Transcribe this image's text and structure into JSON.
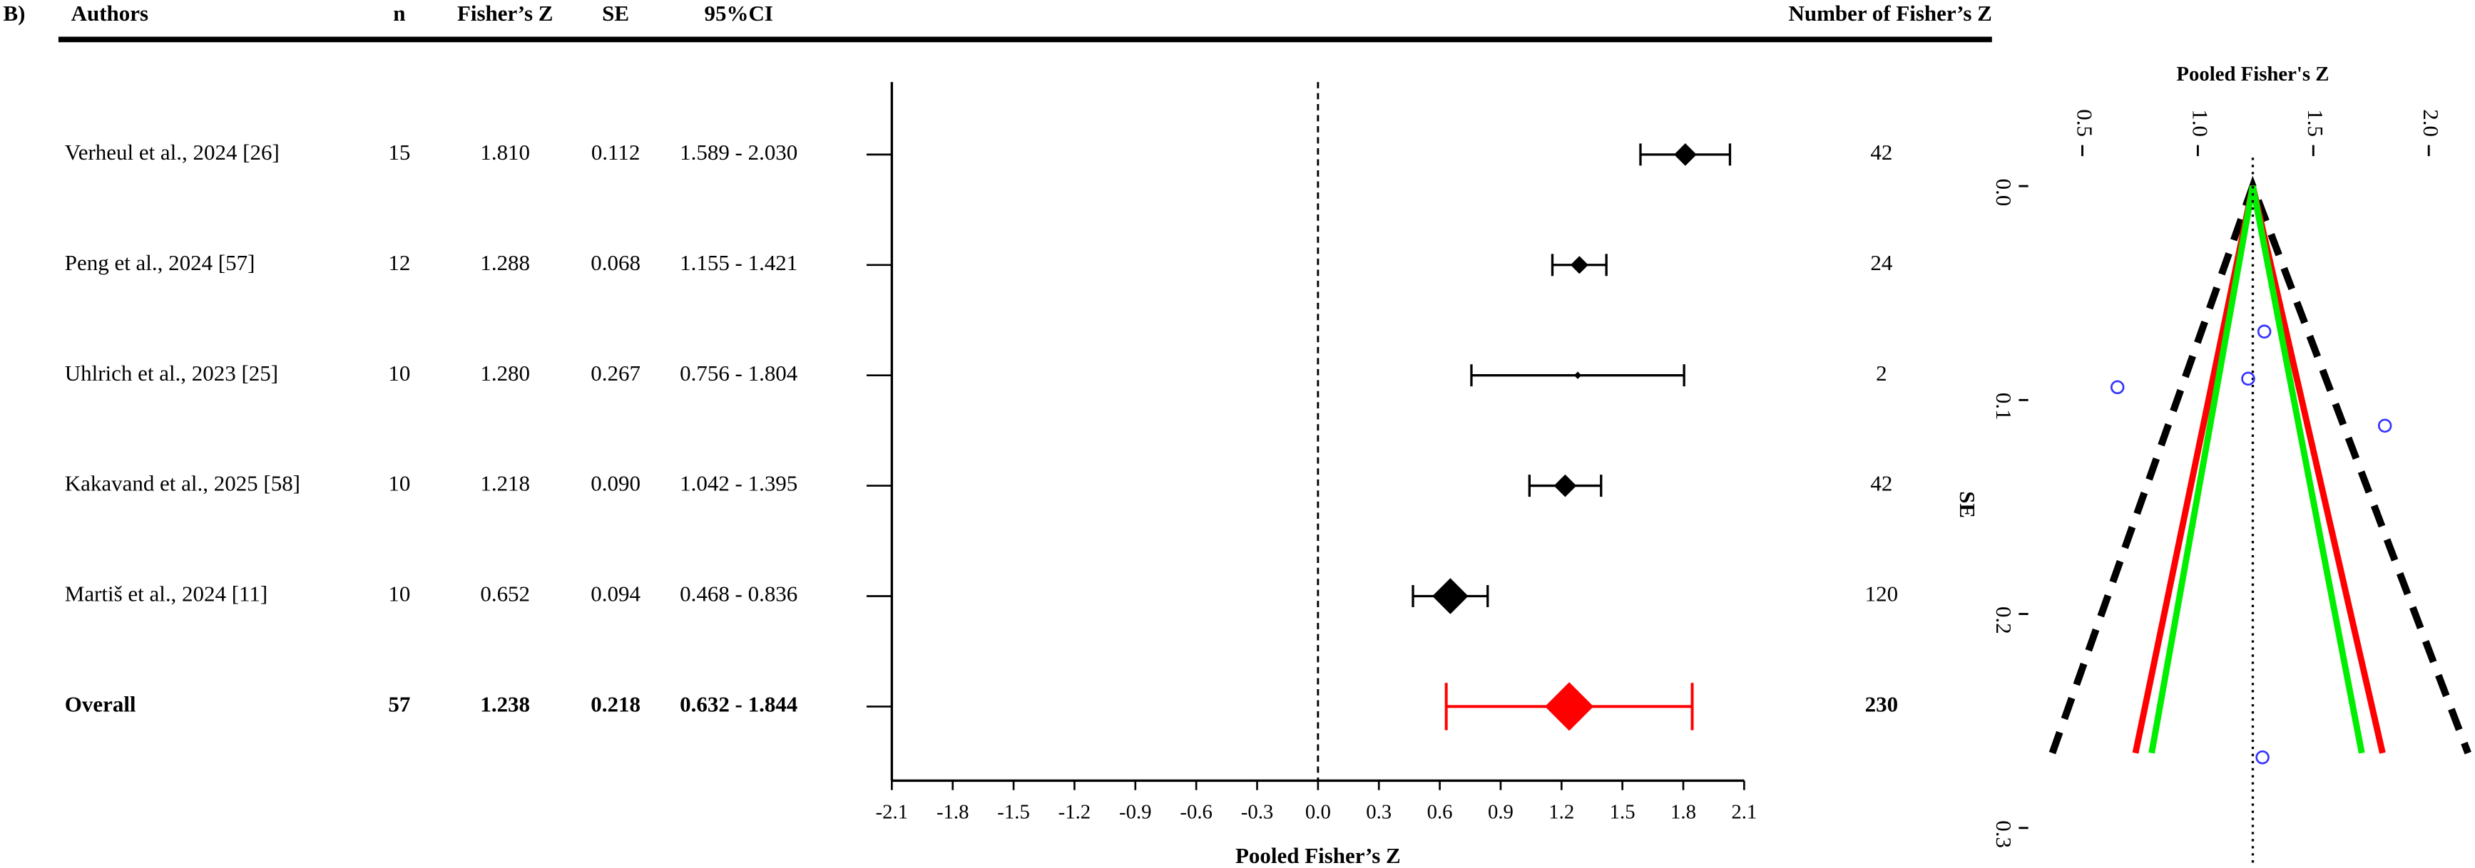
{
  "panel_label": "B)",
  "chart_data": [
    {
      "type": "forest",
      "columns": [
        "Authors",
        "n",
        "Fisher’s Z",
        "SE",
        "95%CI",
        "Number of  Fisher’s Z"
      ],
      "categories": [
        "Verheul et al., 2024 [26]",
        "Peng et al., 2024 [57]",
        "Uhlrich et al., 2023 [25]",
        "Kakavand et al., 2025 [58]",
        "Martiš et al., 2024 [11]"
      ],
      "n": [
        15,
        12,
        10,
        10,
        10
      ],
      "values": [
        1.81,
        1.288,
        1.28,
        1.218,
        0.652
      ],
      "value_labels": [
        "1.810",
        "1.288",
        "1.280",
        "1.218",
        "0.652"
      ],
      "se": [
        "0.112",
        "0.068",
        "0.267",
        "0.090",
        "0.094"
      ],
      "ci_lower": [
        1.589,
        1.155,
        0.756,
        1.042,
        0.468
      ],
      "ci_upper": [
        2.03,
        1.421,
        1.804,
        1.395,
        0.836
      ],
      "ci_labels": [
        "1.589 - 2.030",
        "1.155 - 1.421",
        "0.756 - 1.804",
        "1.042 - 1.395",
        "0.468 - 0.836"
      ],
      "counts": [
        42,
        24,
        2,
        42,
        120
      ],
      "color": "#000000",
      "overall": {
        "label": "Overall",
        "n": 57,
        "value": 1.238,
        "value_label": "1.238",
        "se": "0.218",
        "ci_lower": 0.632,
        "ci_upper": 1.844,
        "ci_label": "0.632 - 1.844",
        "count": 230,
        "color": "#ff0000"
      },
      "xlim": [
        -2.1,
        2.1
      ],
      "xticks": [
        -2.1,
        -1.8,
        -1.5,
        -1.2,
        -0.9,
        -0.6,
        -0.3,
        {
          "value": 0,
          "label": "0.0"
        },
        0.3,
        0.6,
        0.9,
        1.2,
        1.5,
        1.8,
        2.1
      ],
      "xlabel": "Pooled Fisher’s Z",
      "reference_line": 0
    },
    {
      "type": "funnel",
      "title": "Pooled Fisher's Z",
      "ylabel": "SE",
      "x": [
        1.81,
        1.288,
        1.28,
        1.218,
        0.652
      ],
      "y": [
        0.112,
        0.068,
        0.267,
        0.09,
        0.094
      ],
      "color": "#3333ff",
      "pooled": 1.238,
      "xlim": [
        0.3,
        2.2
      ],
      "xticks": [
        0.5,
        {
          "value": 1,
          "label": "1.0"
        },
        1.5,
        {
          "value": 2,
          "label": "2.0"
        }
      ],
      "ylim": [
        0,
        0.3
      ],
      "yticks": [
        {
          "value": 0,
          "label": "0.0"
        },
        0.1,
        0.2,
        0.3
      ],
      "y_inverted": true,
      "limit_lines": [
        {
          "color": "#000000",
          "dashed": true,
          "x": [
            0.37,
            1.238,
            2.17
          ],
          "y": [
            0.265,
            0,
            0.265
          ]
        },
        {
          "color": "#ff0000",
          "dashed": false,
          "x": [
            0.73,
            1.238,
            1.8
          ],
          "y": [
            0.265,
            0,
            0.265
          ]
        },
        {
          "color": "#00ee00",
          "dashed": false,
          "x": [
            0.8,
            1.238,
            1.71
          ],
          "y": [
            0.265,
            0,
            0.265
          ]
        }
      ]
    }
  ]
}
